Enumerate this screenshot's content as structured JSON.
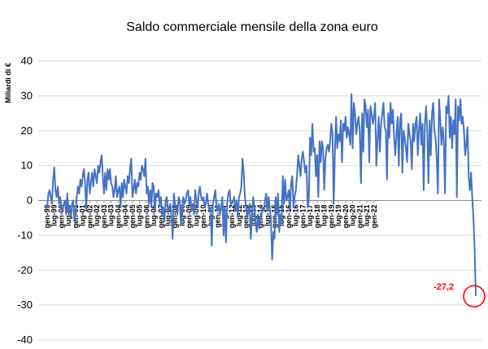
{
  "chart_data": {
    "type": "line",
    "title": "Saldo commerciale mensile della zona euro",
    "ylabel": "Miliardi di €",
    "xlabel": "",
    "ylim": [
      -40,
      40
    ],
    "yticks": [
      40,
      30,
      20,
      10,
      0,
      -10,
      -20,
      -30,
      -40
    ],
    "grid": true,
    "tick_labels": [
      "gen-99",
      "lug-99",
      "gen-00",
      "lug-00",
      "gen-01",
      "lug-01",
      "gen-02",
      "lug-02",
      "gen-03",
      "lug-03",
      "gen-04",
      "lug-04",
      "gen-05",
      "lug-05",
      "gen-06",
      "lug-06",
      "gen-07",
      "lug-07",
      "gen-08",
      "lug-08",
      "gen-09",
      "lug-09",
      "gen-10",
      "lug-10",
      "gen-11",
      "lug-11",
      "gen-12",
      "lug-12",
      "gen-13",
      "lug-13",
      "gen-14",
      "lug-14",
      "gen-15",
      "lug-15",
      "gen-16",
      "lug-16",
      "gen-17",
      "lug-17",
      "gen-18",
      "lug-18",
      "gen-19",
      "lug-19",
      "gen-20",
      "lug-20",
      "gen-21",
      "lug-21",
      "gen-22"
    ],
    "color": "#4472c4",
    "series": [
      {
        "values": [
          -2,
          2,
          3,
          1,
          -1,
          6,
          9.5,
          3,
          1,
          4,
          -1,
          1,
          -2,
          -3,
          -1,
          0,
          -4,
          2,
          -3,
          -2,
          -5,
          -1,
          0,
          -6,
          -3,
          1,
          4,
          2,
          6,
          4,
          7,
          9,
          5,
          -3,
          6,
          8,
          2,
          5,
          8,
          4,
          9,
          7,
          5,
          10,
          8,
          11,
          13,
          7,
          2,
          8,
          3,
          9,
          6,
          9,
          5,
          4,
          1,
          3,
          7,
          1,
          3,
          4,
          -2,
          5,
          1,
          6,
          4,
          2,
          7,
          5,
          9,
          12,
          1,
          3,
          6,
          2,
          5,
          4,
          8,
          6,
          10,
          9,
          7,
          12,
          2,
          4,
          -1,
          3,
          -2,
          5,
          4,
          -3,
          2,
          1,
          3,
          -1,
          1,
          -4,
          -2,
          -6,
          0,
          1,
          -3,
          -2,
          -1,
          -5,
          -11,
          2,
          -1,
          -2,
          -4,
          1,
          0,
          -7,
          -2,
          1,
          -1,
          0,
          2,
          3,
          -1,
          1,
          -3,
          -1,
          -4,
          3,
          0,
          -2,
          2,
          4,
          1,
          0,
          1,
          -2,
          -1,
          2,
          -1,
          -3,
          -2,
          -13,
          -1,
          1,
          3,
          -2,
          -3,
          -1,
          -4,
          -2,
          1,
          -10,
          -2,
          -12,
          -1,
          2,
          3,
          -1,
          -1,
          0,
          1,
          -3,
          0,
          -5,
          1,
          2,
          4,
          12,
          8,
          1,
          -2,
          -5,
          -3,
          -1,
          -11,
          -4,
          1,
          -2,
          -6,
          -9,
          -4,
          -8,
          -6,
          -4,
          -2,
          -3,
          0,
          2,
          -3,
          1,
          -2,
          -6,
          -17,
          -9,
          -11,
          1,
          -4,
          2,
          -9,
          -4,
          -6,
          7,
          -1,
          6,
          0,
          1,
          3,
          -3,
          5,
          7,
          -2,
          1,
          3,
          7,
          13,
          10,
          7,
          12,
          14,
          11,
          8,
          10,
          -2,
          1,
          18,
          13,
          22,
          14,
          15,
          7,
          13,
          1,
          17,
          11,
          17,
          15,
          3,
          12,
          15,
          16,
          14,
          17,
          22,
          19,
          -1,
          14,
          24,
          15,
          19,
          17,
          23,
          11,
          22,
          20,
          24,
          18,
          21,
          19,
          16,
          30.5,
          15,
          28,
          25,
          19,
          22,
          24,
          20,
          5,
          25,
          14,
          29,
          27,
          21,
          26,
          11,
          27,
          25,
          22,
          24,
          28,
          10,
          17,
          24,
          14,
          22,
          25,
          28,
          21,
          20,
          6,
          25,
          18,
          28,
          22,
          26,
          18,
          13,
          19,
          24,
          10,
          23,
          25,
          8,
          20,
          18,
          15,
          11,
          22,
          19,
          17,
          9,
          22,
          17,
          22,
          24,
          13,
          20,
          25,
          16,
          22,
          3,
          22,
          27,
          20,
          5,
          23,
          13,
          25,
          28,
          20,
          18,
          12,
          2,
          29,
          23,
          16,
          21,
          17,
          2,
          27,
          25,
          30,
          18,
          24,
          15,
          23,
          19,
          29,
          1,
          27,
          23,
          29,
          22,
          24,
          20,
          13,
          16,
          21,
          7,
          3,
          8,
          1,
          -5,
          -14,
          -27.2
        ]
      }
    ],
    "annotation": {
      "label": "-27,2",
      "color": "#ff0000"
    }
  }
}
